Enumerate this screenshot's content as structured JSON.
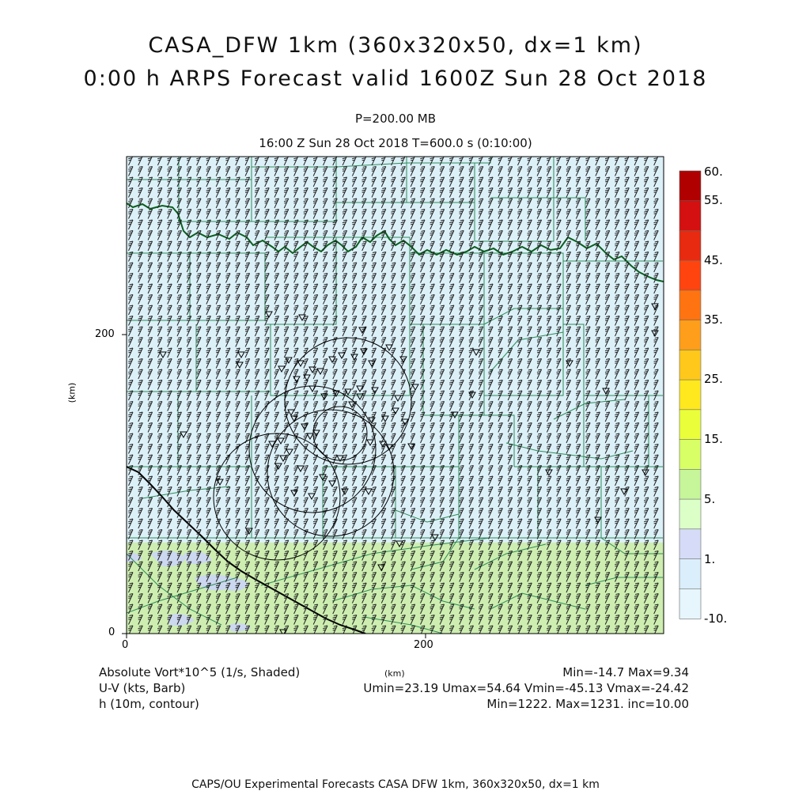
{
  "title": {
    "line1": "CASA_DFW 1km (360x320x50, dx=1 km)",
    "line2": "0:00 h ARPS Forecast valid 1600Z Sun 28 Oct 2018"
  },
  "subtitle": {
    "pressure": "P=200.00 MB",
    "time": "16:00 Z Sun 28 Oct 2018    T=600.0 s (0:10:00)"
  },
  "axes": {
    "x_ticks": [
      "0",
      "200"
    ],
    "y_ticks": [
      "0",
      "200"
    ],
    "x_unit": "(km)",
    "y_unit": "(km)"
  },
  "colorbar": {
    "labels": [
      "60.",
      "55.",
      "45.",
      "35.",
      "25.",
      "15.",
      "5.",
      "1.",
      "-10."
    ],
    "colors": [
      "#b00000",
      "#d41010",
      "#e82a10",
      "#ff4410",
      "#ff7410",
      "#ff9e1a",
      "#ffc81a",
      "#ffe81e",
      "#eaff3a",
      "#d8ff66",
      "#c6f59a",
      "#dcffc8",
      "#d6dcf7",
      "#dbeefb",
      "#e6f6fc"
    ]
  },
  "footer": {
    "left1": "Absolute Vort*10^5 (1/s, Shaded)",
    "left2": "U-V (kts, Barb)",
    "left3": "h (10m, contour)",
    "center": "(km)",
    "right1": "Min=-14.7 Max=9.34",
    "right2": "Umin=23.19 Umax=54.64 Vmin=-45.13 Vmax=-24.42",
    "right3": "Min=1222. Max=1231. inc=10.00",
    "bottom": "CAPS/OU Experimental Forecasts  CASA DFW 1km, 360x320x50, dx=1 km"
  },
  "map": {
    "fill_upper": "#dcf0f8",
    "fill_lower": "#cdeeb0",
    "fill_patch": "#ccd8f0",
    "county_color": "#2e8b57",
    "river_color": "#0b5e1e",
    "barb_color": "#222222"
  }
}
